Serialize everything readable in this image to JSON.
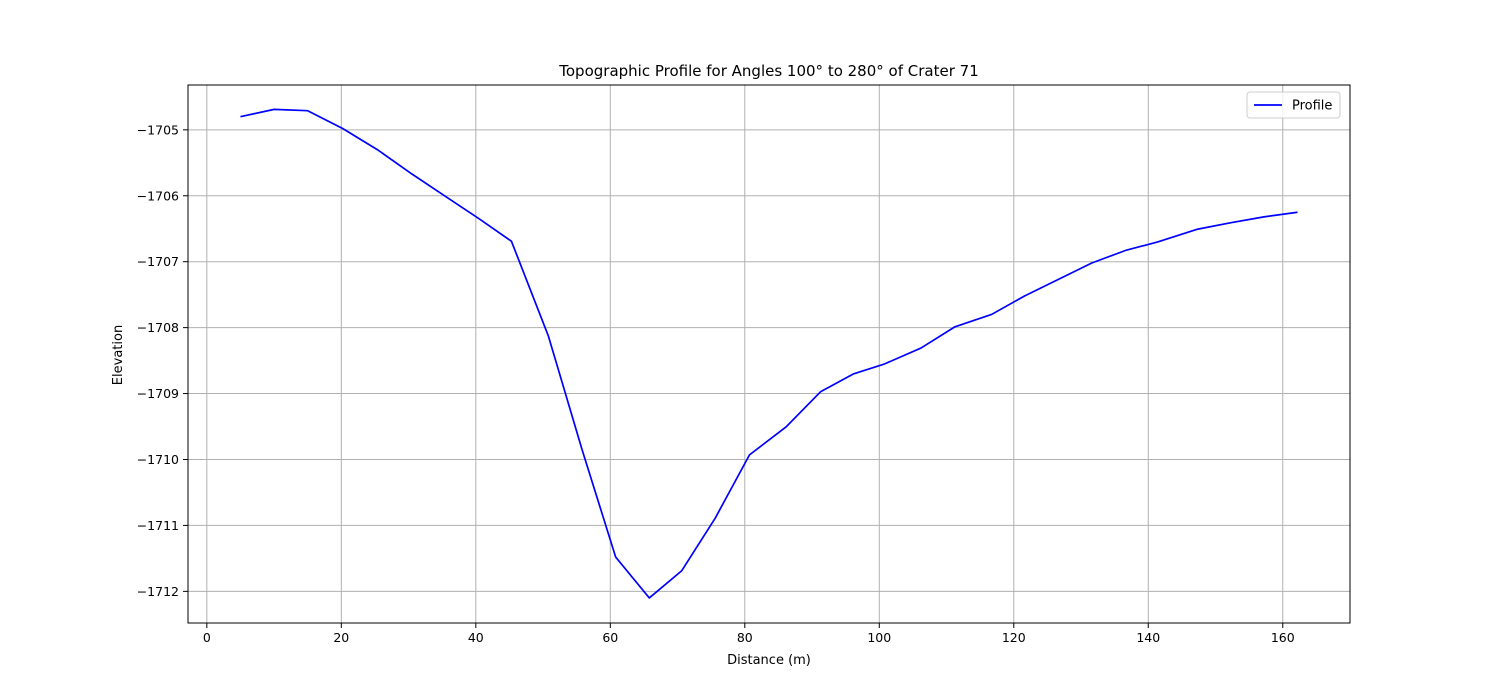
{
  "chart_data": {
    "type": "line",
    "title": "Topographic Profile for Angles 100° to 280° of Crater 71",
    "xlabel": "Distance (m)",
    "ylabel": "Elevation",
    "xlim": [
      -2.8,
      170
    ],
    "ylim": [
      -1712.48,
      -1704.32
    ],
    "xticks": [
      0,
      20,
      40,
      60,
      80,
      100,
      120,
      140,
      160
    ],
    "yticks": [
      -1712,
      -1711,
      -1710,
      -1709,
      -1708,
      -1707,
      -1706,
      -1705
    ],
    "ytick_labels": [
      "−1712",
      "−1711",
      "−1710",
      "−1709",
      "−1708",
      "−1707",
      "−1706",
      "−1705"
    ],
    "grid": true,
    "legend": {
      "position": "top-right"
    },
    "series": [
      {
        "name": "Profile",
        "color": "#0000ff",
        "x": [
          5,
          10,
          15,
          20.2,
          25.5,
          30.5,
          35.5,
          40.5,
          45.3,
          50.8,
          55.8,
          60.8,
          65.8,
          70.6,
          75.6,
          80.7,
          86.2,
          91.3,
          96.2,
          100.8,
          106.2,
          111.2,
          116.7,
          121.6,
          126.6,
          131.6,
          136.6,
          141.4,
          147.2,
          152.2,
          157.2,
          162.2
        ],
        "y": [
          -1704.8,
          -1704.69,
          -1704.71,
          -1704.98,
          -1705.31,
          -1705.67,
          -1706.01,
          -1706.35,
          -1706.69,
          -1708.13,
          -1709.85,
          -1711.48,
          -1712.1,
          -1711.69,
          -1710.89,
          -1709.93,
          -1709.5,
          -1708.97,
          -1708.7,
          -1708.55,
          -1708.31,
          -1707.99,
          -1707.8,
          -1707.52,
          -1707.27,
          -1707.02,
          -1706.83,
          -1706.7,
          -1706.51,
          -1706.41,
          -1706.32,
          -1706.25
        ]
      }
    ]
  }
}
